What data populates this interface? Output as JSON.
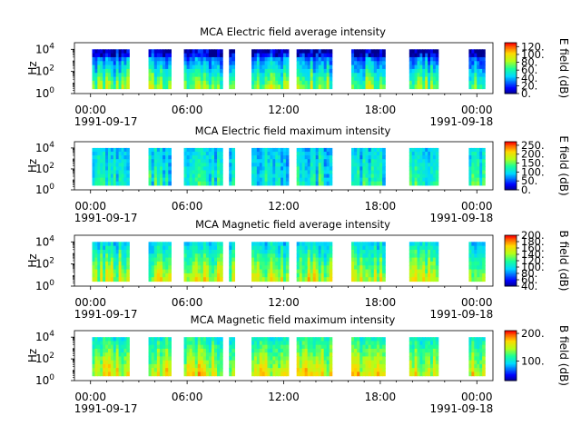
{
  "chart_data": [
    {
      "type": "heatmap",
      "title": "MCA  Electric field average intensity",
      "ylabel": "Hz",
      "y_ticks": [
        "10",
        "10",
        "10"
      ],
      "y_tick_exps": [
        "0",
        "2",
        "4"
      ],
      "x_ticks": [
        "00:00",
        "06:00",
        "12:00",
        "18:00",
        "00:00"
      ],
      "x_dates": [
        "1991-09-17",
        "1991-09-18"
      ],
      "colorbar_label": "E field (dB)",
      "colorbar_ticks": [
        "0.",
        "20.",
        "40.",
        "60.",
        "80.",
        "100.",
        "120."
      ],
      "colorbar_range": [
        0,
        130
      ],
      "xlim_hours": [
        -1,
        25
      ],
      "ylim_log10": [
        0,
        4.6
      ],
      "data_segments_hours": [
        [
          0.1,
          2.4
        ],
        [
          3.6,
          5.0
        ],
        [
          5.8,
          8.2
        ],
        [
          8.6,
          8.95
        ],
        [
          10.0,
          12.3
        ],
        [
          12.8,
          15.0
        ],
        [
          16.2,
          18.3
        ],
        [
          19.8,
          21.6
        ],
        [
          23.5,
          24.5
        ]
      ],
      "freq_range_log10": [
        0.45,
        4.0
      ],
      "intensity_profile": {
        "low_freq": 80,
        "high_freq": 20
      }
    },
    {
      "type": "heatmap",
      "title": "MCA  Electric field maximum intensity",
      "ylabel": "Hz",
      "y_ticks": [
        "10",
        "10",
        "10"
      ],
      "y_tick_exps": [
        "0",
        "2",
        "4"
      ],
      "x_ticks": [
        "00:00",
        "06:00",
        "12:00",
        "18:00",
        "00:00"
      ],
      "x_dates": [
        "1991-09-17",
        "1991-09-18"
      ],
      "colorbar_label": "E field (dB)",
      "colorbar_ticks": [
        "0.",
        "50.",
        "100.",
        "150.",
        "200.",
        "250."
      ],
      "colorbar_range": [
        0,
        270
      ],
      "xlim_hours": [
        -1,
        25
      ],
      "ylim_log10": [
        0,
        4.6
      ],
      "data_segments_hours": [
        [
          0.1,
          2.4
        ],
        [
          3.6,
          5.0
        ],
        [
          5.8,
          8.2
        ],
        [
          8.6,
          8.95
        ],
        [
          10.0,
          12.3
        ],
        [
          12.8,
          15.0
        ],
        [
          16.2,
          18.3
        ],
        [
          19.8,
          21.6
        ],
        [
          23.5,
          24.5
        ]
      ],
      "freq_range_log10": [
        0.45,
        4.0
      ],
      "intensity_profile": {
        "low_freq": 120,
        "high_freq": 95
      }
    },
    {
      "type": "heatmap",
      "title": "MCA  Magnetic field average intensity",
      "ylabel": "Hz",
      "y_ticks": [
        "10",
        "10",
        "10"
      ],
      "y_tick_exps": [
        "0",
        "2",
        "4"
      ],
      "x_ticks": [
        "00:00",
        "06:00",
        "12:00",
        "18:00",
        "00:00"
      ],
      "x_dates": [
        "1991-09-17",
        "1991-09-18"
      ],
      "colorbar_label": "B field (dB)",
      "colorbar_ticks": [
        "40.",
        "60.",
        "80.",
        "100.",
        "120.",
        "140.",
        "160.",
        "180.",
        "200."
      ],
      "colorbar_range": [
        40,
        200
      ],
      "xlim_hours": [
        -1,
        25
      ],
      "ylim_log10": [
        0,
        4.6
      ],
      "data_segments_hours": [
        [
          0.1,
          2.4
        ],
        [
          3.6,
          5.0
        ],
        [
          5.8,
          8.2
        ],
        [
          8.6,
          8.95
        ],
        [
          10.0,
          12.3
        ],
        [
          12.8,
          15.0
        ],
        [
          16.2,
          18.3
        ],
        [
          19.8,
          21.6
        ],
        [
          23.5,
          24.5
        ]
      ],
      "freq_range_log10": [
        0.45,
        4.0
      ],
      "intensity_profile": {
        "low_freq": 150,
        "high_freq": 100
      }
    },
    {
      "type": "heatmap",
      "title": "MCA  Magnetic field maximum intensity",
      "ylabel": "Hz",
      "y_ticks": [
        "10",
        "10",
        "10"
      ],
      "y_tick_exps": [
        "0",
        "2",
        "4"
      ],
      "x_ticks": [
        "00:00",
        "06:00",
        "12:00",
        "18:00",
        "00:00"
      ],
      "x_dates": [
        "1991-09-17",
        "1991-09-18"
      ],
      "colorbar_label": "B field (dB)",
      "colorbar_ticks": [
        "100.",
        "200."
      ],
      "colorbar_range": [
        30,
        210
      ],
      "xlim_hours": [
        -1,
        25
      ],
      "ylim_log10": [
        0,
        4.6
      ],
      "data_segments_hours": [
        [
          0.1,
          2.4
        ],
        [
          3.6,
          5.0
        ],
        [
          5.8,
          8.2
        ],
        [
          8.6,
          8.95
        ],
        [
          10.0,
          12.3
        ],
        [
          12.8,
          15.0
        ],
        [
          16.2,
          18.3
        ],
        [
          19.8,
          21.6
        ],
        [
          23.5,
          24.5
        ]
      ],
      "freq_range_log10": [
        0.45,
        4.0
      ],
      "intensity_profile": {
        "low_freq": 160,
        "high_freq": 110
      }
    }
  ]
}
